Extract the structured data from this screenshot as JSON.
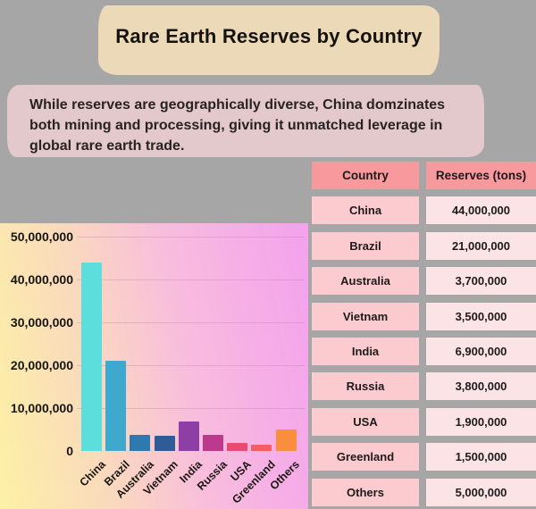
{
  "title": "Rare Earth Reserves by Country",
  "subtitle": {
    "lines": [
      "While reserves are geographically diverse, China domzinates",
      "both mining and processing, giving it unmatched leverage in",
      "global rare earth trade."
    ]
  },
  "colors": {
    "background": "#A6A6A6",
    "title_banner": "#EBD9B8",
    "subtitle_banner": "#E3C8CC",
    "table_header": "#F8999E",
    "table_country_cell": "#FBCBCF",
    "table_value_cell": "#FCE4E6",
    "gridline": "rgba(186,130,170,0.35)",
    "chart_gradient": [
      "#FCF1A5",
      "#FAD9BE",
      "#F8BCDE",
      "#F4A4EC"
    ]
  },
  "chart_data": {
    "type": "bar",
    "title": "",
    "xlabel": "",
    "ylabel": "",
    "categories": [
      "China",
      "Brazil",
      "Australia",
      "Vietnam",
      "India",
      "Russia",
      "USA",
      "Greenland",
      "Others"
    ],
    "values": [
      44000000,
      21000000,
      3700000,
      3500000,
      6900000,
      3800000,
      1900000,
      1500000,
      5000000
    ],
    "bar_colors": [
      "#5CDEDC",
      "#3FA9CD",
      "#2E7AB0",
      "#2F5B96",
      "#8E3FA5",
      "#BB3A8E",
      "#EA4A72",
      "#F35F60",
      "#F98E3E"
    ],
    "ylim": [
      0,
      50000000
    ],
    "yticks": [
      {
        "label": "0",
        "value": 0
      },
      {
        "label": "10,000,000",
        "value": 10000000
      },
      {
        "label": "20,000,000",
        "value": 20000000
      },
      {
        "label": "30,000,000",
        "value": 30000000
      },
      {
        "label": "40,000,000",
        "value": 40000000
      },
      {
        "label": "50,000,000",
        "value": 50000000
      }
    ],
    "grid": "horizontal",
    "legend": "none",
    "background": "yellow-to-pink gradient",
    "xtick_rotation": -45
  },
  "table": {
    "headers": [
      "Country",
      "Reserves (tons)"
    ],
    "rows": [
      [
        "China",
        "44,000,000"
      ],
      [
        "Brazil",
        "21,000,000"
      ],
      [
        "Australia",
        "3,700,000"
      ],
      [
        "Vietnam",
        "3,500,000"
      ],
      [
        "India",
        "6,900,000"
      ],
      [
        "Russia",
        "3,800,000"
      ],
      [
        "USA",
        "1,900,000"
      ],
      [
        "Greenland",
        "1,500,000"
      ],
      [
        "Others",
        "5,000,000"
      ]
    ]
  }
}
